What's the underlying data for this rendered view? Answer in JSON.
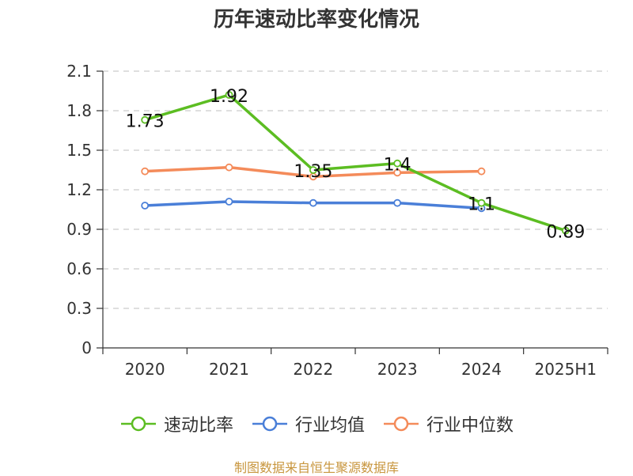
{
  "title": "历年速动比率变化情况",
  "source_note": "制图数据来自恒生聚源数据库",
  "chart_data": {
    "type": "line",
    "categories": [
      "2020",
      "2021",
      "2022",
      "2023",
      "2024",
      "2025H1"
    ],
    "ylim": [
      0,
      2.1
    ],
    "yticks": [
      "0",
      "0.3",
      "0.6",
      "0.9",
      "1.2",
      "1.5",
      "1.8",
      "2.1"
    ],
    "grid": true,
    "legend_position": "bottom",
    "series": [
      {
        "name": "速动比率",
        "color": "#5cbd22",
        "values": [
          1.73,
          1.92,
          1.35,
          1.4,
          1.1,
          0.89
        ],
        "labels": [
          "1.73",
          "1.92",
          "1.35",
          "1.4",
          "1.1",
          "0.89"
        ]
      },
      {
        "name": "行业均值",
        "color": "#4a7fd8",
        "values": [
          1.08,
          1.11,
          1.1,
          1.1,
          1.06,
          null
        ]
      },
      {
        "name": "行业中位数",
        "color": "#f48b5a",
        "values": [
          1.34,
          1.37,
          1.3,
          1.33,
          1.34,
          null
        ]
      }
    ]
  }
}
